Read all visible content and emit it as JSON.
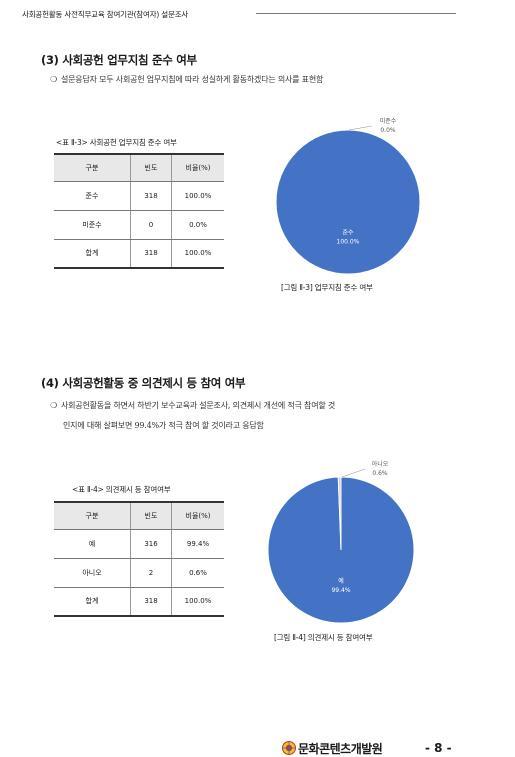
{
  "header": {
    "title": "사회공헌활동 사전직무교육 참여기관(참여자) 설문조사"
  },
  "sections": [
    {
      "title": "(3) 사회공헌 업무지침 준수 여부",
      "bullet": "❍",
      "paragraph_lines": [
        "설문응답자 모두 사회공헌 업무지침에 따라 성실하게 활동하겠다는 의사를 표현함"
      ],
      "table": {
        "caption": "<표 Ⅱ-3> 사회공헌 업무지침 준수 여부",
        "columns": [
          "구분",
          "빈도",
          "비율(%)"
        ],
        "rows": [
          [
            "준수",
            "318",
            "100.0%"
          ],
          [
            "미준수",
            "0",
            "0.0%"
          ],
          [
            "합계",
            "318",
            "100.0%"
          ]
        ]
      },
      "figure_caption": "[그림 Ⅱ-3] 업무지침 준수 여부"
    },
    {
      "title": "(4) 사회공헌활동 중 의견제시 등 참여 여부",
      "bullet": "❍",
      "paragraph_lines": [
        "사회공헌활동을 하면서 하반기 보수교육과 설문조사, 의견제시 개선에 적극 참여할 것",
        "인지에 대해 살펴보면 99.4%가 적극 참여 할 것이라고 응답함"
      ],
      "table": {
        "caption": "<표 Ⅱ-4> 의견제시 등 참여여부",
        "columns": [
          "구분",
          "빈도",
          "비율(%)"
        ],
        "rows": [
          [
            "예",
            "316",
            "99.4%"
          ],
          [
            "아니오",
            "2",
            "0.6%"
          ],
          [
            "합계",
            "318",
            "100.0%"
          ]
        ]
      },
      "figure_caption": "[그림 Ⅱ-4] 의견제시 등 참여여부"
    }
  ],
  "chart_data": [
    {
      "type": "pie",
      "categories": [
        "준수",
        "미준수"
      ],
      "values": [
        100.0,
        0.0
      ],
      "labels": [
        {
          "name": "준수",
          "value": "100.0%"
        },
        {
          "name": "미준수",
          "value": "0.0%"
        }
      ],
      "colors": [
        "#4472c4",
        "#cfcfcf"
      ]
    },
    {
      "type": "pie",
      "categories": [
        "예",
        "아니오"
      ],
      "values": [
        99.4,
        0.6
      ],
      "labels": [
        {
          "name": "예",
          "value": "99.4%"
        },
        {
          "name": "아니오",
          "value": "0.6%"
        }
      ],
      "colors": [
        "#4472c4",
        "#cfcfcf"
      ]
    }
  ],
  "footer": {
    "org_name": "문화콘텐츠개발원",
    "page": "- 8 -",
    "logo_icon": "emblem-icon"
  }
}
